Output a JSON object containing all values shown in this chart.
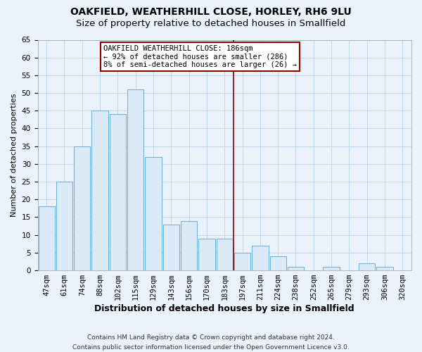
{
  "title": "OAKFIELD, WEATHERHILL CLOSE, HORLEY, RH6 9LU",
  "subtitle": "Size of property relative to detached houses in Smallfield",
  "xlabel": "Distribution of detached houses by size in Smallfield",
  "ylabel": "Number of detached properties",
  "footer_line1": "Contains HM Land Registry data © Crown copyright and database right 2024.",
  "footer_line2": "Contains public sector information licensed under the Open Government Licence v3.0.",
  "categories": [
    "47sqm",
    "61sqm",
    "74sqm",
    "88sqm",
    "102sqm",
    "115sqm",
    "129sqm",
    "143sqm",
    "156sqm",
    "170sqm",
    "183sqm",
    "197sqm",
    "211sqm",
    "224sqm",
    "238sqm",
    "252sqm",
    "265sqm",
    "279sqm",
    "293sqm",
    "306sqm",
    "320sqm"
  ],
  "values": [
    18,
    25,
    35,
    45,
    44,
    51,
    32,
    13,
    14,
    9,
    9,
    5,
    7,
    4,
    1,
    0,
    1,
    0,
    2,
    1,
    0
  ],
  "bar_color": "#daeaf7",
  "bar_edge_color": "#6aaed6",
  "grid_color": "#c0d8ee",
  "background_color": "#eaf2fb",
  "vline_x": 10.5,
  "vline_color": "#8b0000",
  "annotation_text": "OAKFIELD WEATHERHILL CLOSE: 186sqm\n← 92% of detached houses are smaller (286)\n8% of semi-detached houses are larger (26) →",
  "annotation_box_color": "#ffffff",
  "annotation_box_edge": "#8b0000",
  "ylim": [
    0,
    65
  ],
  "yticks": [
    0,
    5,
    10,
    15,
    20,
    25,
    30,
    35,
    40,
    45,
    50,
    55,
    60,
    65
  ],
  "title_fontsize": 10,
  "subtitle_fontsize": 9.5,
  "xlabel_fontsize": 9,
  "ylabel_fontsize": 8,
  "tick_fontsize": 7.5,
  "ann_fontsize": 7.5,
  "footer_fontsize": 6.5
}
